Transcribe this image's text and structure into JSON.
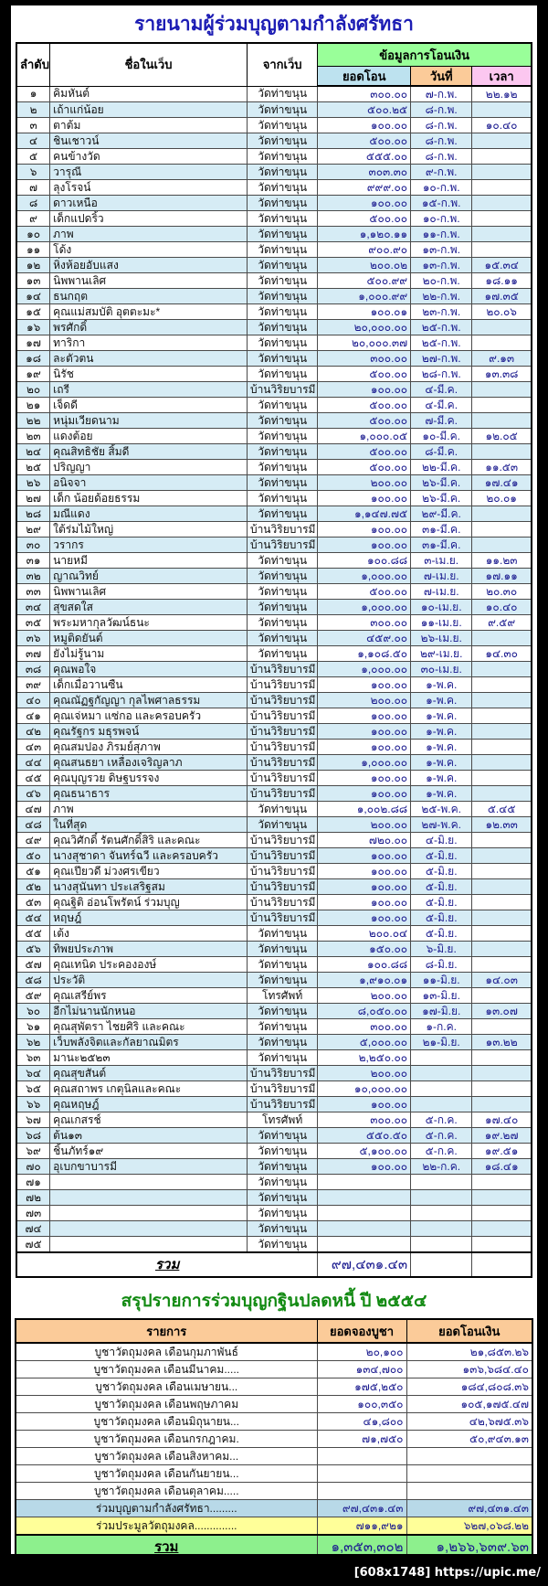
{
  "colors": {
    "title_blue": "#1c1cb4",
    "title_green": "#128a12",
    "green_header": "#99ff99",
    "blue_header": "#bde2ef",
    "orange_header": "#fbcb99",
    "pink_header": "#fcc7f0",
    "stripe": "#d6ecf5",
    "navy": "#1b1b8f",
    "summary_blue": "#b8d9e8",
    "summary_yellow": "#ffff99",
    "summary_green": "#8df08d"
  },
  "watermark": "[608x1748] https://upic.me/",
  "donor_table": {
    "title": "รายนามผู้ร่วมบุญตามกำลังศรัทธา",
    "headers": {
      "no": "ลำดับ",
      "name": "ชื่อในเว็บ",
      "from": "จากเว็บ",
      "transfer_group": "ข้อมูลการโอนเงิน",
      "amount": "ยอดโอน",
      "date": "วันที่",
      "time": "เวลา"
    },
    "rows": [
      [
        "๑",
        "คิมหันต์",
        "วัดท่าขนุน",
        "๓๐๐.๐๐",
        "๗-ก.พ.",
        "๒๒.๑๒"
      ],
      [
        "๒",
        "เถ้าแก่น้อย",
        "วัดท่าขนุน",
        "๕๐๐.๒๕",
        "๘-ก.พ.",
        ""
      ],
      [
        "๓",
        "ตาต้ม",
        "วัดท่าขนุน",
        "๑๐๐.๐๐",
        "๘-ก.พ.",
        "๑๐.๔๐"
      ],
      [
        "๔",
        "ชินเชาวน์",
        "วัดท่าขนุน",
        "๕๐๐.๐๐",
        "๘-ก.พ.",
        ""
      ],
      [
        "๕",
        "คนข้างวัด",
        "วัดท่าขนุน",
        "๕๕๕.๐๐",
        "๘-ก.พ.",
        ""
      ],
      [
        "๖",
        "วารุณี",
        "วัดท่าขนุน",
        "๓๐๓.๓๐",
        "๙-ก.พ.",
        ""
      ],
      [
        "๗",
        "ลุงโรจน์",
        "วัดท่าขนุน",
        "๙๙๙.๐๐",
        "๑๐-ก.พ.",
        ""
      ],
      [
        "๘",
        "ดาวเหนือ",
        "วัดท่าขนุน",
        "๑๐๐.๐๐",
        "๑๕-ก.พ.",
        ""
      ],
      [
        "๙",
        "เด็กแปดริ้ว",
        "วัดท่าขนุน",
        "๕๐๐.๐๐",
        "๑๐-ก.พ.",
        ""
      ],
      [
        "๑๐",
        "ภาพ",
        "วัดท่าขนุน",
        "๑,๑๒๐.๑๑",
        "๑๑-ก.พ.",
        ""
      ],
      [
        "๑๑",
        "โด้ง",
        "วัดท่าขนุน",
        "๙๐๐.๙๐",
        "๑๓-ก.พ.",
        ""
      ],
      [
        "๑๒",
        "หิ่งห้อยอับแสง",
        "วัดท่าขนุน",
        "๒๐๐.๐๒",
        "๑๓-ก.พ.",
        "๑๕.๓๔"
      ],
      [
        "๑๓",
        "นิพพานเลิศ",
        "วัดท่าขนุน",
        "๕๐๐.๙๙",
        "๒๐-ก.พ.",
        "๑๘.๑๑"
      ],
      [
        "๑๔",
        "ธนกฤต",
        "วัดท่าขนุน",
        "๑,๐๐๐.๙๙",
        "๒๒-ก.พ.",
        "๑๗.๓๕"
      ],
      [
        "๑๕",
        "คุณแม่สมบัติ อุตตะมะ*",
        "วัดท่าขนุน",
        "๑๐๐.๐๑",
        "๒๓-ก.พ.",
        "๒๐.๐๖"
      ],
      [
        "๑๖",
        "พรศักดิ์",
        "วัดท่าขนุน",
        "๒๐,๐๐๐.๐๐",
        "๒๕-ก.พ.",
        ""
      ],
      [
        "๑๗",
        "ทาริกา",
        "วัดท่าขนุน",
        "๒๐,๐๐๐.๓๗",
        "๒๕-ก.พ.",
        ""
      ],
      [
        "๑๘",
        "ละตัวตน",
        "วัดท่าขนุน",
        "๓๐๐.๐๐",
        "๒๗-ก.พ.",
        "๙.๑๓"
      ],
      [
        "๑๙",
        "นิรัช",
        "วัดท่าขนุน",
        "๕๐๐.๐๐",
        "๒๘-ก.พ.",
        "๑๓.๓๘"
      ],
      [
        "๒๐",
        "เถรี",
        "บ้านวิริยบารมี",
        "๑๐๐.๐๐",
        "๔-มี.ค.",
        ""
      ],
      [
        "๒๑",
        "เจ็ดดี",
        "วัดท่าขนุน",
        "๕๐๐.๐๐",
        "๔-มี.ค.",
        ""
      ],
      [
        "๒๒",
        "หนุ่มเวียดนาม",
        "วัดท่าขนุน",
        "๕๐๐.๐๐",
        "๗-มี.ค.",
        ""
      ],
      [
        "๒๓",
        "แดงต้อย",
        "วัดท่าขนุน",
        "๑,๐๐๐.๐๕",
        "๑๐-มี.ค.",
        "๑๒.๐๕"
      ],
      [
        "๒๔",
        "คุณสิทธิชัย สิ้มดี",
        "วัดท่าขนุน",
        "๕๐๐.๐๐",
        "๘-มี.ค.",
        ""
      ],
      [
        "๒๕",
        "ปริญญา",
        "วัดท่าขนุน",
        "๕๐๐.๐๐",
        "๒๒-มี.ค.",
        "๑๑.๕๓"
      ],
      [
        "๒๖",
        "อนิจจา",
        "วัดท่าขนุน",
        "๒๐๐.๐๐",
        "๒๖-มี.ค.",
        "๑๗.๔๑"
      ],
      [
        "๒๗",
        "เด็ก น้อยด้อยธรรม",
        "วัดท่าขนุน",
        "๑๐๐.๐๐",
        "๒๖-มี.ค.",
        "๒๐.๐๑"
      ],
      [
        "๒๘",
        "มณีแดง",
        "วัดท่าขนุน",
        "๑,๑๔๗.๗๕",
        "๒๙-มี.ค.",
        ""
      ],
      [
        "๒๙",
        "ใต้ร่มไม้ใหญ่",
        "บ้านวิริยบารมี",
        "๑๐๐.๐๐",
        "๓๑-มี.ค.",
        ""
      ],
      [
        "๓๐",
        "วรากร",
        "บ้านวิริยบารมี",
        "๑๐๐.๐๐",
        "๓๑-มี.ค.",
        ""
      ],
      [
        "๓๑",
        "นายหมี",
        "วัดท่าขนุน",
        "๑๐๐.๘๘",
        "๓-เม.ย.",
        "๑๑.๒๓"
      ],
      [
        "๓๒",
        "ญาณวิทย์",
        "วัดท่าขนุน",
        "๑,๐๐๐.๐๐",
        "๗-เม.ย.",
        "๑๗.๑๑"
      ],
      [
        "๓๓",
        "นิพพานเลิศ",
        "วัดท่าขนุน",
        "๕๐๐.๐๐",
        "๗-เม.ย.",
        "๒๐.๓๐"
      ],
      [
        "๓๔",
        "สุขสดใส",
        "วัดท่าขนุน",
        "๑,๐๐๐.๐๐",
        "๑๐-เม.ย.",
        "๑๐.๔๐"
      ],
      [
        "๓๕",
        "พระมหากุลวัฒน์ธนะ",
        "วัดท่าขนุน",
        "๓๐๐.๐๐",
        "๑๑-เม.ย.",
        "๙.๕๙"
      ],
      [
        "๓๖",
        "หมูติดยันต์",
        "วัดท่าขนุน",
        "๔๕๙.๐๐",
        "๒๖-เม.ย.",
        ""
      ],
      [
        "๓๗",
        "ยังไม่รู้นาม",
        "วัดท่าขนุน",
        "๑,๑๐๘.๕๐",
        "๒๙-เม.ย.",
        "๑๔.๓๐"
      ],
      [
        "๓๘",
        "คุณพอใจ",
        "บ้านวิริยบารมี",
        "๑,๐๐๐.๐๐",
        "๓๐-เม.ย.",
        ""
      ],
      [
        "๓๙",
        "เด็กเมื่อวานซืน",
        "บ้านวิริยบารมี",
        "๑๐๐.๐๐",
        "๑-พ.ค.",
        ""
      ],
      [
        "๔๐",
        "คุณณัฏฐกัญญา กุลไพศาลธรรม",
        "บ้านวิริยบารมี",
        "๒๐๐.๐๐",
        "๑-พ.ค.",
        ""
      ],
      [
        "๔๑",
        "คุณเจ่หมา แซ่กอ และครอบครัว",
        "บ้านวิริยบารมี",
        "๑๐๐.๐๐",
        "๑-พ.ค.",
        ""
      ],
      [
        "๔๒",
        "คุณรัฐกร มธุรพจน์",
        "บ้านวิริยบารมี",
        "๑๐๐.๐๐",
        "๑-พ.ค.",
        ""
      ],
      [
        "๔๓",
        "คุณสมปอง ภิรมย์สุภาพ",
        "บ้านวิริยบารมี",
        "๑๐๐.๐๐",
        "๑-พ.ค.",
        ""
      ],
      [
        "๔๔",
        "คุณสนธยา เหลื่องเจริญลาภ",
        "บ้านวิริยบารมี",
        "๑,๐๐๐.๐๐",
        "๑-พ.ค.",
        ""
      ],
      [
        "๔๕",
        "คุณบุญรวย ดิษฐบรรจง",
        "บ้านวิริยบารมี",
        "๑๐๐.๐๐",
        "๑-พ.ค.",
        ""
      ],
      [
        "๔๖",
        "คุณธนาธาร",
        "บ้านวิริยบารมี",
        "๑๐๐.๐๐",
        "๑-พ.ค.",
        ""
      ],
      [
        "๔๗",
        "ภาพ",
        "วัดท่าขนุน",
        "๑,๐๐๒.๘๘",
        "๒๕-พ.ค.",
        "๕.๔๕"
      ],
      [
        "๔๘",
        "ในที่สุด",
        "วัดท่าขนุน",
        "๒๐๐.๐๐",
        "๒๗-พ.ค.",
        "๑๒.๓๓"
      ],
      [
        "๔๙",
        "คุณวิศักดิ์ รัตนศักดิ์สิริ และคณะ",
        "บ้านวิริยบารมี",
        "๗๒๐.๐๐",
        "๔-มิ.ย.",
        ""
      ],
      [
        "๕๐",
        "นางสุชาดา จันทร์ฉวี และครอบครัว",
        "บ้านวิริยบารมี",
        "๑๐๐.๐๐",
        "๕-มิ.ย.",
        ""
      ],
      [
        "๕๑",
        "คุณเปียวดี ม่วงศรเขียว",
        "บ้านวิริยบารมี",
        "๑๐๐.๐๐",
        "๕-มิ.ย.",
        ""
      ],
      [
        "๕๒",
        "นางสุนันทา ประเสริฐสม",
        "บ้านวิริยบารมี",
        "๑๐๐.๐๐",
        "๕-มิ.ย.",
        ""
      ],
      [
        "๕๓",
        "คุณฐิติ อ่อนโพรัตน์ ร่วมบุญ",
        "บ้านวิริยบารมี",
        "๑๐๐.๐๐",
        "๕-มิ.ย.",
        ""
      ],
      [
        "๕๔",
        "หฤษฎ์",
        "บ้านวิริยบารมี",
        "๑๐๐.๐๐",
        "๕-มิ.ย.",
        ""
      ],
      [
        "๕๕",
        "เต้ง",
        "วัดท่าขนุน",
        "๒๐๐.๐๔",
        "๕-มิ.ย.",
        ""
      ],
      [
        "๕๖",
        "ทิพยประภาพ",
        "วัดท่าขนุน",
        "๑๕๐.๐๐",
        "๖-มิ.ย.",
        ""
      ],
      [
        "๕๗",
        "คุณเทนิด ประคององษ์",
        "วัดท่าขนุน",
        "๑๐๐.๘๘",
        "๘-มิ.ย.",
        ""
      ],
      [
        "๕๘",
        "ประวัติ",
        "วัดท่าขนุน",
        "๑,๙๑๐.๐๑",
        "๑๑-มิ.ย.",
        "๑๔.๐๓"
      ],
      [
        "๕๙",
        "คุณเสรีย์พร",
        "โทรศัพท์",
        "๒๐๐.๐๐",
        "๑๓-มิ.ย.",
        ""
      ],
      [
        "๖๐",
        "อีกไม่นานนักหนอ",
        "วัดท่าขนุน",
        "๘,๐๕๐.๐๐",
        "๑๗-มิ.ย.",
        "๑๓.๐๗"
      ],
      [
        "๖๑",
        "คุณสุพัตรา ไชยศิริ และคณะ",
        "วัดท่าขนุน",
        "๓๐๐.๐๐",
        "๑-ก.ค.",
        ""
      ],
      [
        "๖๒",
        "เว็บพลังจิตและกัลยาณมิตร",
        "วัดท่าขนุน",
        "๕,๐๐๐.๐๐",
        "๒๑-มิ.ย.",
        "๑๓.๒๒"
      ],
      [
        "๖๓",
        "มานะ๒๕๒๓",
        "วัดท่าขนุน",
        "๒,๒๕๐.๐๐",
        "",
        ""
      ],
      [
        "๖๔",
        "คุณสุขสันต์",
        "บ้านวิริยบารมี",
        "๒๐๐.๐๐",
        "",
        ""
      ],
      [
        "๖๕",
        "คุณสถาพร เกตุนิลและคณะ",
        "บ้านวิริยบารมี",
        "๑๐,๐๐๐.๐๐",
        "",
        ""
      ],
      [
        "๖๖",
        "คุณหฤษฎ์",
        "บ้านวิริยบารมี",
        "๑๐๐.๐๐",
        "",
        ""
      ],
      [
        "๖๗",
        "คุณเกสรช์",
        "โทรศัพท์",
        "๓๐๐.๐๐",
        "๕-ก.ค.",
        "๑๗.๔๐"
      ],
      [
        "๖๘",
        "ต้น๑๓",
        "วัดท่าขนุน",
        "๕๕๐.๕๐",
        "๕-ก.ค.",
        "๑๙.๒๗"
      ],
      [
        "๖๙",
        "ชิ้นภัทร์๑๙",
        "วัดท่าขนุน",
        "๕,๑๐๐.๐๐",
        "๕-ก.ค.",
        "๑๙.๕๑"
      ],
      [
        "๗๐",
        "อุเบกขาบารมี",
        "วัดท่าขนุน",
        "๑๐๐.๐๐",
        "๒๒-ก.ค.",
        "๑๘.๔๑"
      ],
      [
        "๗๑",
        "",
        "วัดท่าขนุน",
        "",
        "",
        ""
      ],
      [
        "๗๒",
        "",
        "วัดท่าขนุน",
        "",
        "",
        ""
      ],
      [
        "๗๓",
        "",
        "วัดท่าขนุน",
        "",
        "",
        ""
      ],
      [
        "๗๔",
        "",
        "วัดท่าขนุน",
        "",
        "",
        ""
      ],
      [
        "๗๕",
        "",
        "วัดท่าขนุน",
        "",
        "",
        ""
      ]
    ],
    "total_label": "รวม",
    "total_amount": "๙๗,๔๓๑.๔๓"
  },
  "summary_table": {
    "title": "สรุปรายการร่วมบุญกฐินปลดหนี้ ปี ๒๕๕๔",
    "headers": {
      "label": "รายการ",
      "pledge": "ยอดจองบูชา",
      "transfer": "ยอดโอนเงิน"
    },
    "rows": [
      {
        "label": "บูชาวัตถุมงคล เดือนกุมภาพันธ์",
        "pledge": "๒๐,๑๐๐",
        "transfer": "๒๑,๘๕๓.๒๖",
        "highlight": ""
      },
      {
        "label": "บูชาวัตถุมงคล เดือนมีนาคม.....",
        "pledge": "๑๓๔,๗๐๐",
        "transfer": "๑๓๖,๖๘๔.๔๐",
        "highlight": ""
      },
      {
        "label": "บูชาวัตถุมงคล เดือนเมษายน...",
        "pledge": "๑๗๕,๒๕๐",
        "transfer": "๑๘๔,๘๐๘.๓๖",
        "highlight": ""
      },
      {
        "label": "บูชาวัตถุมงคล เดือนพฤษภาคม",
        "pledge": "๑๐๐,๓๕๐",
        "transfer": "๑๐๕,๑๗๕.๔๗",
        "highlight": ""
      },
      {
        "label": "บูชาวัตถุมงคล เดือนมิถุนายน...",
        "pledge": "๔๑,๘๐๐",
        "transfer": "๔๒,๖๗๕.๓๖",
        "highlight": ""
      },
      {
        "label": "บูชาวัตถุมงคล เดือนกรกฎาคม.",
        "pledge": "๗๑,๗๕๐",
        "transfer": "๕๐,๙๔๓.๑๓",
        "highlight": ""
      },
      {
        "label": "บูชาวัตถุมงคล เดือนสิงหาคม...",
        "pledge": "",
        "transfer": "",
        "highlight": ""
      },
      {
        "label": "บูชาวัตถุมงคล เดือนกันยายน...",
        "pledge": "",
        "transfer": "",
        "highlight": ""
      },
      {
        "label": "บูชาวัตถุมงคล เดือนตุลาคม.....",
        "pledge": "",
        "transfer": "",
        "highlight": ""
      },
      {
        "label": "ร่วมบุญตามกำลังศรัทธา.........",
        "pledge": "๙๗,๔๓๑.๔๓",
        "transfer": "๙๗,๔๓๑.๔๓",
        "highlight": "blue"
      },
      {
        "label": "ร่วมประมูลวัตถุมงคล..............",
        "pledge": "๗๑๑,๙๒๑",
        "transfer": "๖๒๗,๐๖๘.๒๒",
        "highlight": "yellow"
      }
    ],
    "total": {
      "label": "รวม",
      "pledge": "๑,๓๕๓,๓๐๒",
      "transfer": "๑,๒๖๖,๖๓๙.๖๓"
    }
  }
}
